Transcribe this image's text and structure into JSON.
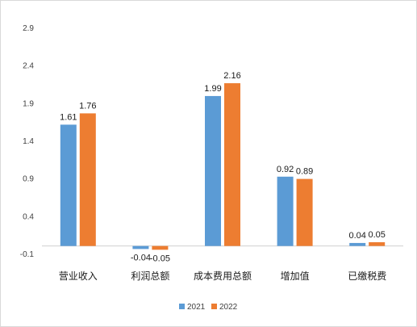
{
  "chart_data": {
    "type": "bar",
    "categories": [
      "营业收入",
      "利润总额",
      "成本费用总额",
      "增加值",
      "已缴税费"
    ],
    "series": [
      {
        "name": "2021",
        "color": "#5b9bd5",
        "values": [
          1.61,
          -0.04,
          1.99,
          0.92,
          0.04
        ]
      },
      {
        "name": "2022",
        "color": "#ed7d31",
        "values": [
          1.76,
          -0.05,
          2.16,
          0.89,
          0.05
        ]
      }
    ],
    "data_labels": [
      [
        "1.61",
        "-0.04",
        "1.99",
        "0.92",
        "0.04"
      ],
      [
        "1.76",
        "-0.05",
        "2.16",
        "0.89",
        "0.05"
      ]
    ],
    "y_ticks": [
      "-0.1",
      "0.4",
      "0.9",
      "1.4",
      "1.9",
      "2.4",
      "2.9"
    ],
    "y_tick_values": [
      -0.1,
      0.4,
      0.9,
      1.4,
      1.9,
      2.4,
      2.9
    ],
    "ylim": [
      -0.1,
      2.9
    ],
    "grid": false,
    "legend_position": "bottom"
  }
}
